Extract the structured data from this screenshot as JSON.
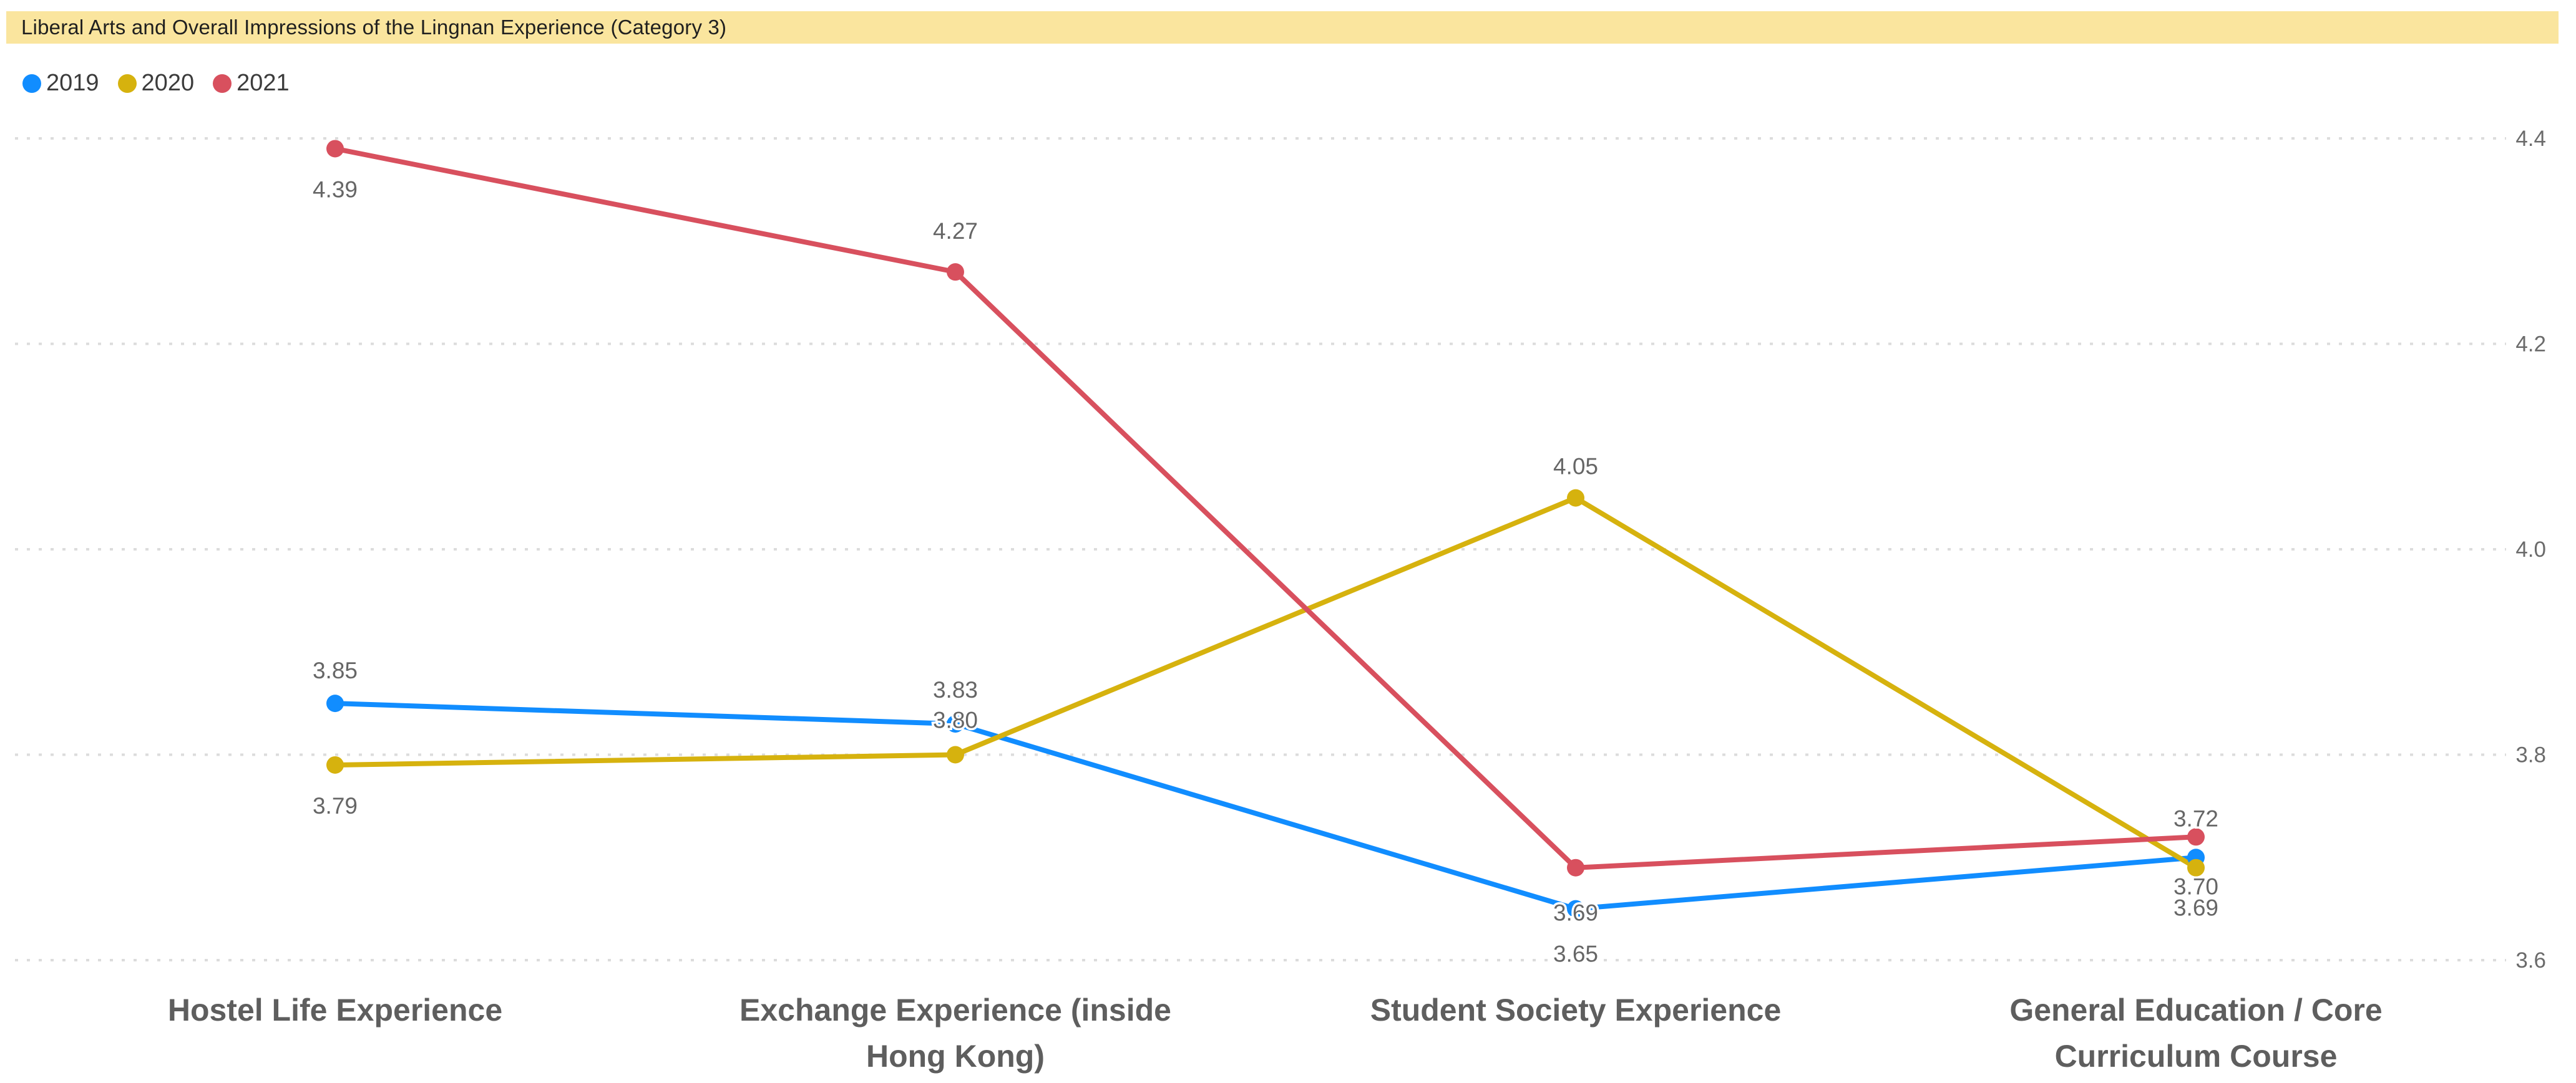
{
  "title": "Liberal Arts and Overall Impressions of the Lingnan Experience (Category 3)",
  "legend": {
    "position": "top-left",
    "items": [
      {
        "label": "2019",
        "color": "#118DFF"
      },
      {
        "label": "2020",
        "color": "#D6B20E"
      },
      {
        "label": "2021",
        "color": "#D8505E"
      }
    ]
  },
  "colors": {
    "title_bar_bg": "#FAE59E",
    "title_text": "#1F1F1F",
    "gridline": "#DCDCDC",
    "data_label_text": "#666666",
    "axis_tick_text": "#6B6B6B",
    "category_label_text": "#5E5E5E",
    "series_2019": "#118DFF",
    "series_2020": "#D6B20E",
    "series_2021": "#D8505E"
  },
  "chart_data": {
    "type": "line",
    "title": "Liberal Arts and Overall Impressions of the Lingnan Experience (Category 3)",
    "categories": [
      "Hostel Life Experience",
      "Exchange Experience (inside Hong Kong)",
      "Student Society Experience",
      "General Education / Core Curriculum Course"
    ],
    "categories_wrapped": [
      [
        "Hostel Life Experience"
      ],
      [
        "Exchange Experience (inside",
        "Hong Kong)"
      ],
      [
        "Student Society Experience"
      ],
      [
        "General Education / Core",
        "Curriculum Course"
      ]
    ],
    "series": [
      {
        "name": "2019",
        "color": "#118DFF",
        "values": [
          3.85,
          3.83,
          3.65,
          3.7
        ],
        "labels": [
          "3.85",
          "3.83",
          "3.65",
          "3.70"
        ],
        "label_dy": [
          -53,
          -55,
          72,
          46
        ]
      },
      {
        "name": "2020",
        "color": "#D6B20E",
        "values": [
          3.79,
          3.8,
          4.05,
          3.69
        ],
        "labels": [
          "3.79",
          "3.80",
          "4.05",
          "3.69"
        ],
        "label_dy": [
          65,
          -56,
          -51,
          64
        ]
      },
      {
        "name": "2021",
        "color": "#D8505E",
        "values": [
          4.39,
          4.27,
          3.69,
          3.72
        ],
        "labels": [
          "4.39",
          "4.27",
          "3.69",
          "3.72"
        ],
        "label_dy": [
          65,
          -66,
          72,
          -30
        ]
      }
    ],
    "ylim": [
      3.6,
      4.4
    ],
    "yticks": [
      4.4,
      4.2,
      4.0,
      3.8,
      3.6
    ],
    "ytick_labels": [
      "4.4",
      "4.2",
      "4.0",
      "3.8",
      "3.6"
    ],
    "grid": "dotted horizontal gridlines",
    "legend_position": "top-left",
    "data_labels": "on"
  }
}
